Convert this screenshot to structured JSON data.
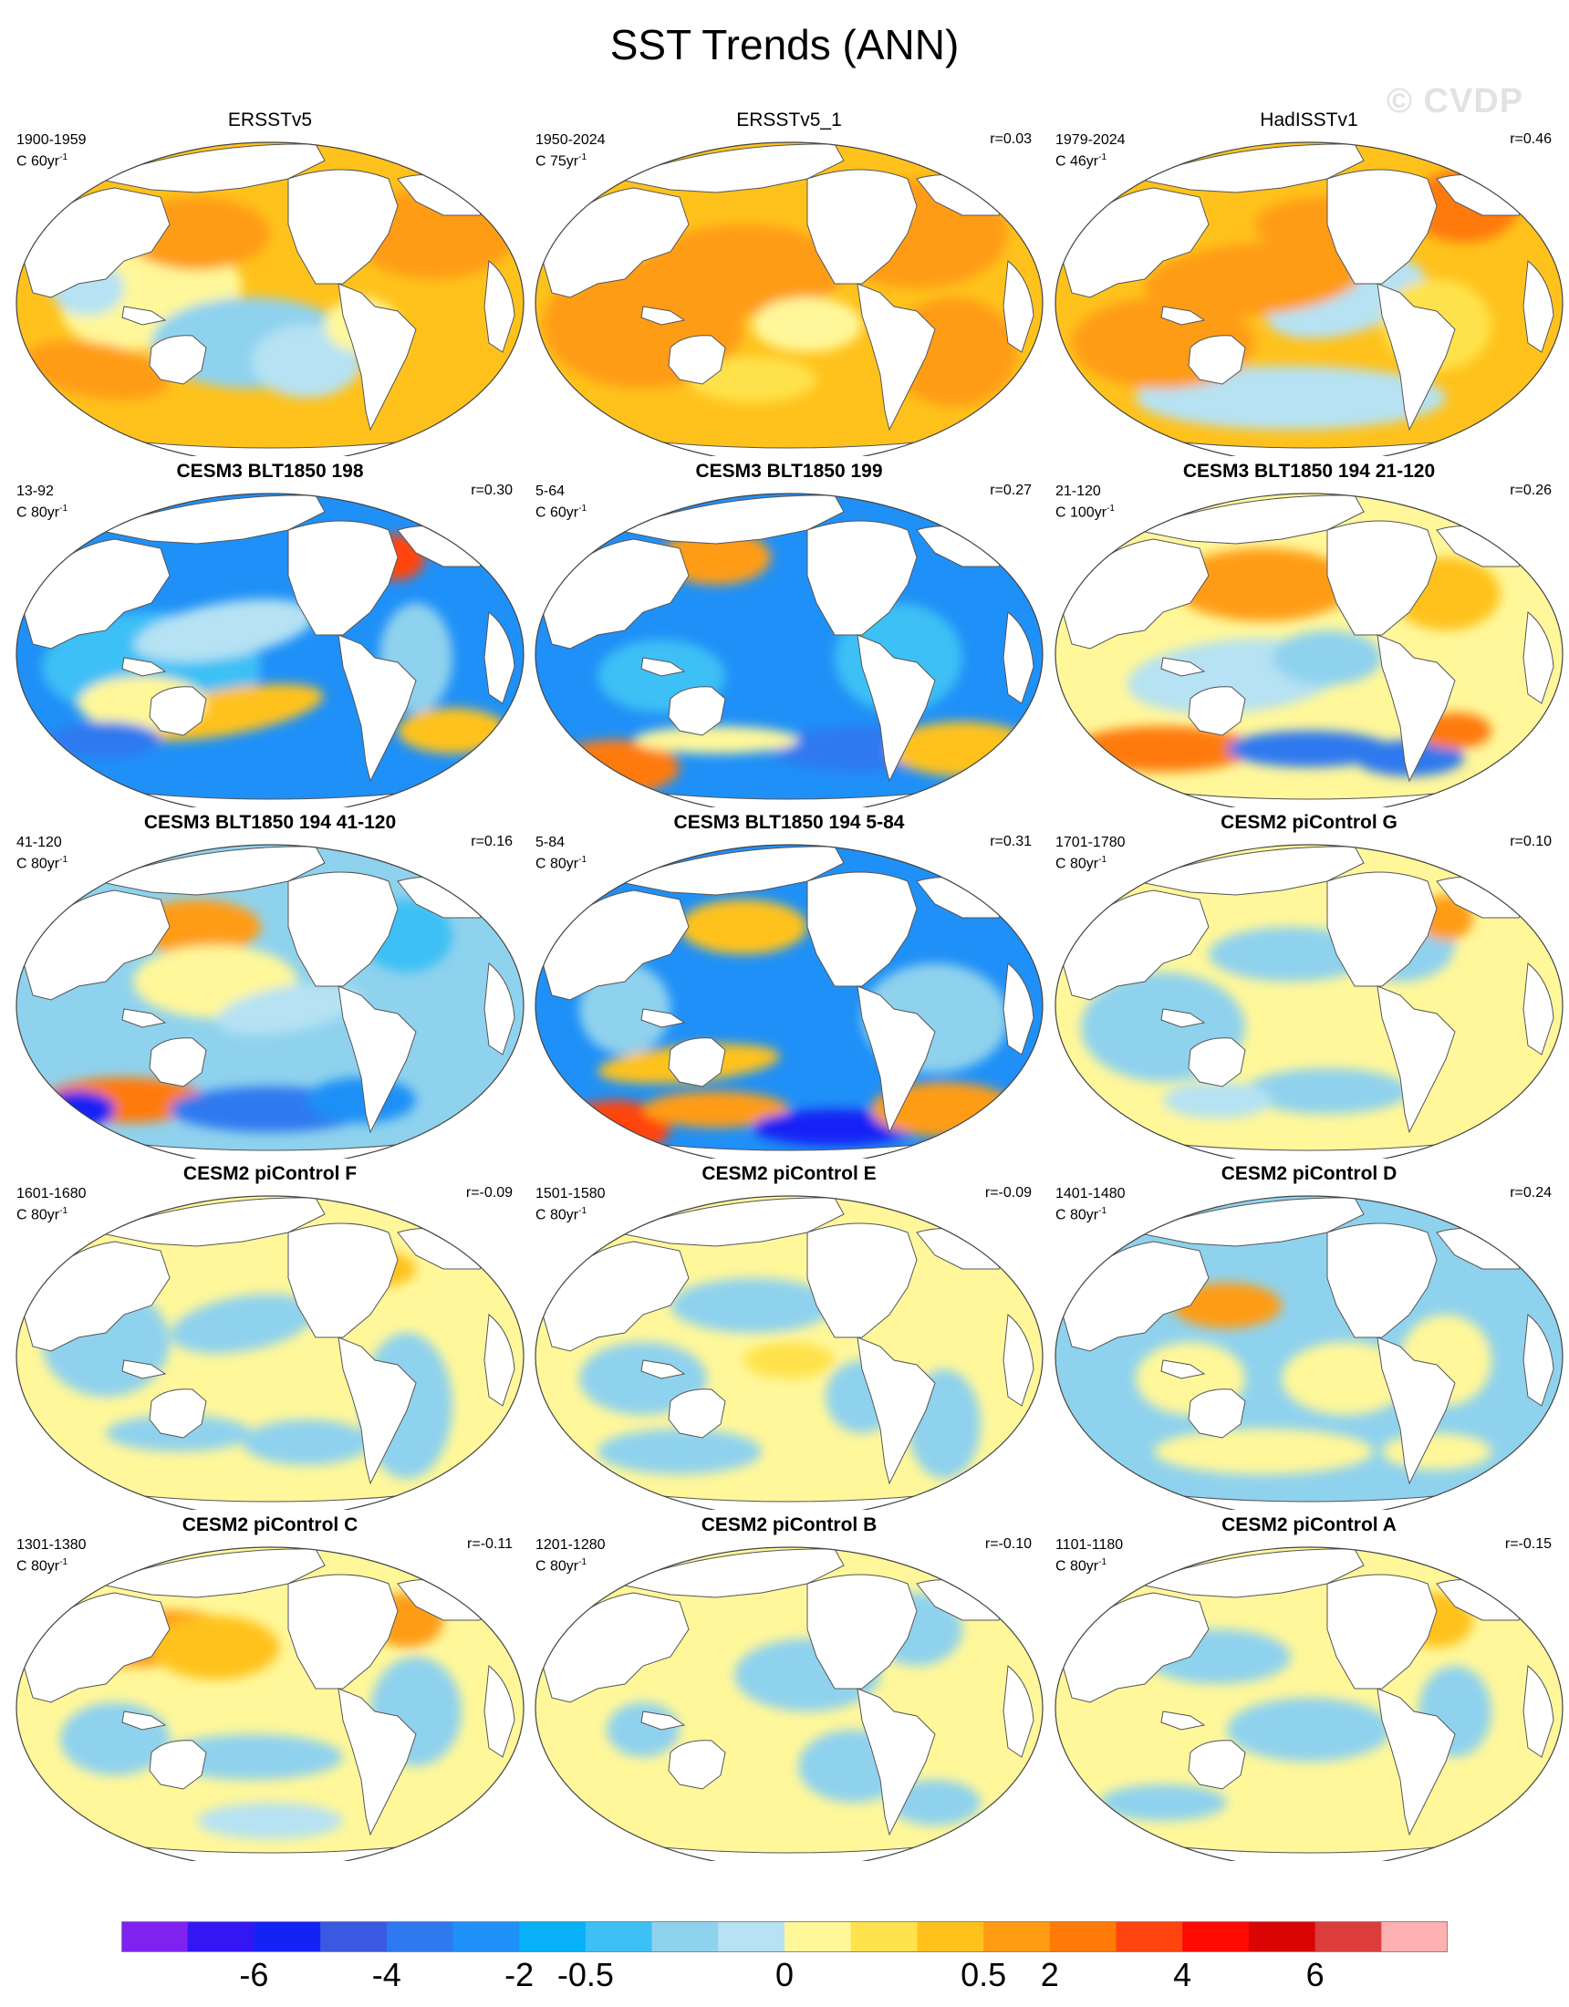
{
  "title": "SST Trends (ANN)",
  "watermark": "© CVDP",
  "panels": [
    {
      "title": "ERSSTv5",
      "period": "1900-1959",
      "units": "C 60yr",
      "r": "",
      "pattern": 0
    },
    {
      "title": "ERSSTv5_1",
      "period": "1950-2024",
      "units": "C 75yr",
      "r": "r=0.03",
      "pattern": 1
    },
    {
      "title": "HadISSTv1",
      "period": "1979-2024",
      "units": "C 46yr",
      "r": "r=0.46",
      "pattern": 2
    },
    {
      "title": "CESM3 BLT1850 198",
      "period": "13-92",
      "units": "C 80yr",
      "r": "r=0.30",
      "pattern": 3
    },
    {
      "title": "CESM3 BLT1850 199",
      "period": "5-64",
      "units": "C 60yr",
      "r": "r=0.27",
      "pattern": 4
    },
    {
      "title": "CESM3 BLT1850 194 21-120",
      "period": "21-120",
      "units": "C 100yr",
      "r": "r=0.26",
      "pattern": 5
    },
    {
      "title": "CESM3 BLT1850 194 41-120",
      "period": "41-120",
      "units": "C 80yr",
      "r": "r=0.16",
      "pattern": 6
    },
    {
      "title": "CESM3 BLT1850 194 5-84",
      "period": "5-84",
      "units": "C 80yr",
      "r": "r=0.31",
      "pattern": 7
    },
    {
      "title": "CESM2 piControl G",
      "period": "1701-1780",
      "units": "C 80yr",
      "r": "r=0.10",
      "pattern": 8
    },
    {
      "title": "CESM2 piControl F",
      "period": "1601-1680",
      "units": "C 80yr",
      "r": "r=-0.09",
      "pattern": 9
    },
    {
      "title": "CESM2 piControl E",
      "period": "1501-1580",
      "units": "C 80yr",
      "r": "r=-0.09",
      "pattern": 10
    },
    {
      "title": "CESM2 piControl D",
      "period": "1401-1480",
      "units": "C 80yr",
      "r": "r=0.24",
      "pattern": 11
    },
    {
      "title": "CESM2 piControl C",
      "period": "1301-1380",
      "units": "C 80yr",
      "r": "r=-0.11",
      "pattern": 12
    },
    {
      "title": "CESM2 piControl B",
      "period": "1201-1280",
      "units": "C 80yr",
      "r": "r=-0.10",
      "pattern": 13
    },
    {
      "title": "CESM2 piControl A",
      "period": "1101-1180",
      "units": "C 80yr",
      "r": "r=-0.15",
      "pattern": 14
    }
  ],
  "units_superscript": "-1",
  "colorbar": {
    "colors": [
      "#7f22f0",
      "#3316f2",
      "#1423f5",
      "#3a58e0",
      "#2e79ef",
      "#1f90f7",
      "#07b0f7",
      "#3cc0f5",
      "#8fd2ee",
      "#b6e2f3",
      "#fff79a",
      "#ffe24c",
      "#ffc21c",
      "#ff9c13",
      "#ff7a08",
      "#ff4410",
      "#fe0a02",
      "#d90404",
      "#db3d3d",
      "#feb1b1"
    ],
    "tick_labels": [
      "-6",
      "-4",
      "-2",
      "-0.5",
      "0",
      "0.5",
      "2",
      "4",
      "6"
    ]
  },
  "legend_palette": {
    "ocean_warm": "#ffc11d",
    "land": "#ffffff"
  }
}
